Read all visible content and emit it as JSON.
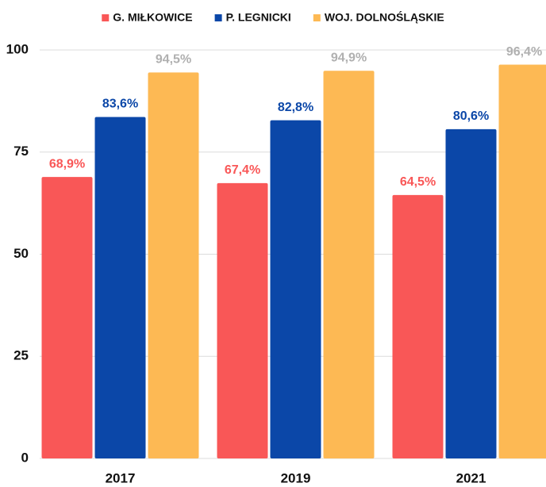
{
  "chart_data": {
    "type": "bar",
    "categories": [
      "2017",
      "2019",
      "2021"
    ],
    "series": [
      {
        "name": "G. MIŁKOWICE",
        "color": "#f95757",
        "label_color": "#f95757",
        "values": [
          68.9,
          67.4,
          64.5
        ],
        "value_labels": [
          "68,9%",
          "67,4%",
          "64,5%"
        ]
      },
      {
        "name": "P. LEGNICKI",
        "color": "#0b47a8",
        "label_color": "#0b47a8",
        "values": [
          83.6,
          82.8,
          80.6
        ],
        "value_labels": [
          "83,6%",
          "82,8%",
          "80,6%"
        ]
      },
      {
        "name": "WOJ. DOLNOŚLĄSKIE",
        "color": "#fdb954",
        "label_color": "#b0b0b0",
        "values": [
          94.5,
          94.9,
          96.4
        ],
        "value_labels": [
          "94,5%",
          "94,9%",
          "96,4%"
        ]
      }
    ],
    "ylim": [
      0,
      100
    ],
    "yticks": [
      0,
      25,
      50,
      75,
      100
    ],
    "grid": true,
    "legend": "top"
  }
}
